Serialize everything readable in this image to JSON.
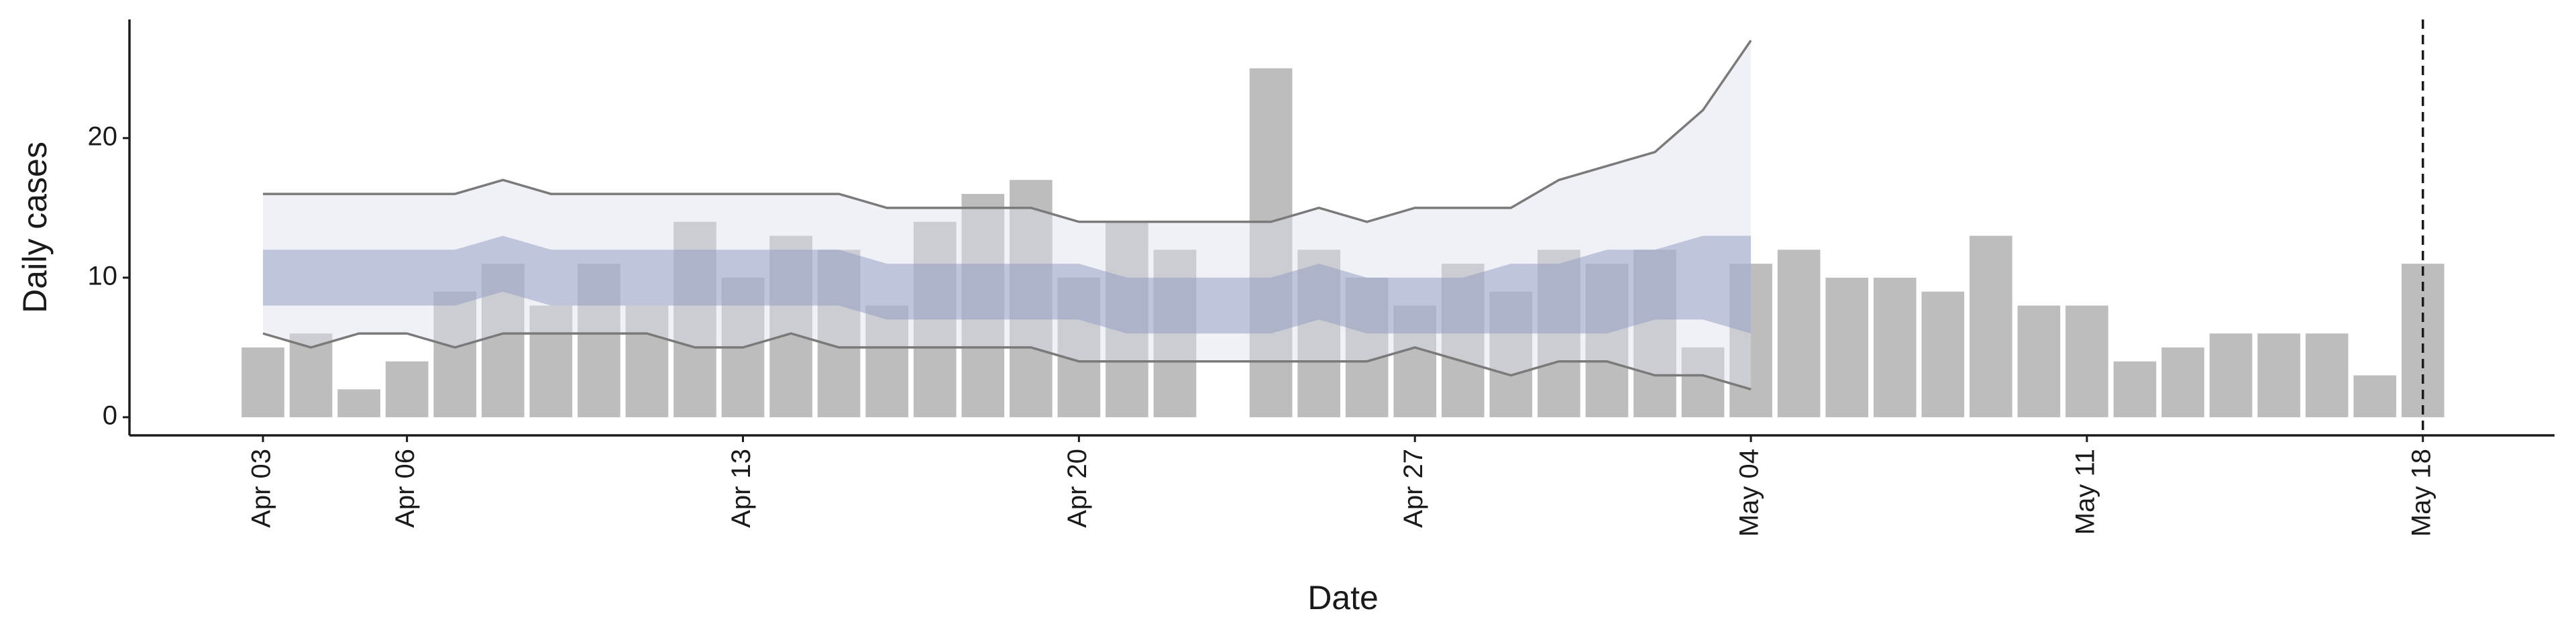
{
  "chart_data": {
    "type": "bar",
    "x_label": "Date",
    "y_label": "Daily cases",
    "categories": [
      "Apr 03",
      null,
      null,
      "Apr 06",
      null,
      null,
      null,
      null,
      null,
      null,
      "Apr 13",
      null,
      null,
      null,
      null,
      null,
      null,
      "Apr 20",
      null,
      null,
      null,
      null,
      null,
      null,
      "Apr 27",
      null,
      null,
      null,
      null,
      null,
      null,
      "May 04",
      null,
      null,
      null,
      null,
      null,
      null,
      "May 11",
      null,
      null,
      null,
      null,
      null,
      null,
      "May 18"
    ],
    "values": [
      5,
      6,
      2,
      4,
      9,
      11,
      8,
      11,
      8,
      14,
      10,
      13,
      12,
      8,
      14,
      16,
      17,
      10,
      14,
      12,
      null,
      25,
      12,
      10,
      8,
      11,
      9,
      12,
      11,
      12,
      5,
      11,
      12,
      10,
      10,
      9,
      13,
      8,
      8,
      4,
      5,
      6,
      6,
      6,
      3,
      11
    ],
    "color": "#bdbdbd",
    "bands": [
      {
        "color": "#dde1ea",
        "line_color": "#7a7a7a",
        "upper": [
          16,
          16,
          16,
          16,
          16,
          17,
          16,
          16,
          16,
          16,
          16,
          16,
          16,
          15,
          15,
          15,
          15,
          14,
          14,
          14,
          14,
          14,
          15,
          14,
          15,
          15,
          15,
          17,
          18,
          19,
          22,
          27,
          null,
          null,
          null,
          null,
          null,
          null,
          null,
          null,
          null,
          null,
          null,
          null,
          null,
          null
        ],
        "lower": [
          6,
          5,
          6,
          6,
          5,
          6,
          6,
          6,
          6,
          5,
          5,
          6,
          5,
          5,
          5,
          5,
          5,
          4,
          4,
          4,
          4,
          4,
          4,
          4,
          5,
          4,
          3,
          4,
          4,
          3,
          3,
          2,
          null,
          null,
          null,
          null,
          null,
          null,
          null,
          null,
          null,
          null,
          null,
          null,
          null,
          null
        ]
      },
      {
        "color": "#8e9ac0",
        "upper": [
          12,
          12,
          12,
          12,
          12,
          13,
          12,
          12,
          12,
          12,
          12,
          12,
          12,
          11,
          11,
          11,
          11,
          11,
          10,
          10,
          10,
          10,
          11,
          10,
          10,
          10,
          11,
          11,
          12,
          12,
          13,
          13,
          null,
          null,
          null,
          null,
          null,
          null,
          null,
          null,
          null,
          null,
          null,
          null,
          null,
          null
        ],
        "lower": [
          8,
          8,
          8,
          8,
          8,
          9,
          8,
          8,
          8,
          8,
          8,
          8,
          8,
          7,
          7,
          7,
          7,
          7,
          6,
          6,
          6,
          6,
          7,
          6,
          6,
          6,
          6,
          6,
          6,
          7,
          7,
          6,
          null,
          null,
          null,
          null,
          null,
          null,
          null,
          null,
          null,
          null,
          null,
          null,
          null,
          null
        ]
      }
    ],
    "ylim": [
      -1.3,
      28.5
    ],
    "yticks": [
      0,
      10,
      20
    ],
    "grid": false
  }
}
